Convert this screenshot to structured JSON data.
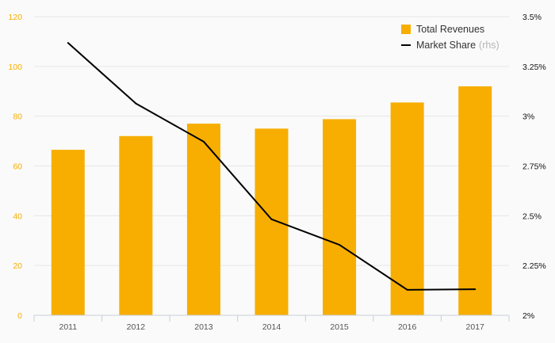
{
  "chart_data": {
    "type": "bar",
    "categories": [
      "2011",
      "2012",
      "2013",
      "2014",
      "2015",
      "2016",
      "2017"
    ],
    "series": [
      {
        "name": "Total Revenues",
        "type": "bar",
        "axis": "left",
        "color": "#f7ae00",
        "values": [
          66.5,
          72,
          77,
          75,
          78.8,
          85.5,
          92
        ]
      },
      {
        "name": "Market Share",
        "type": "line",
        "axis": "right",
        "color": "#000000",
        "values": [
          3.368,
          3.064,
          2.872,
          2.482,
          2.354,
          2.128,
          2.131
        ]
      }
    ],
    "y_left": {
      "lim": [
        0,
        120
      ],
      "ticks": [
        0,
        20,
        40,
        60,
        80,
        100,
        120
      ],
      "tick_labels": [
        "0",
        "20",
        "40",
        "60",
        "80",
        "100",
        "120"
      ],
      "color": "#f7ae00"
    },
    "y_right": {
      "lim": [
        2,
        3.5
      ],
      "ticks": [
        2,
        2.25,
        2.5,
        2.75,
        3,
        3.25,
        3.5
      ],
      "tick_labels": [
        "2%",
        "2.25%",
        "2.5%",
        "2.75%",
        "3%",
        "3.25%",
        "3.5%"
      ]
    },
    "legend": {
      "placement": "top-right",
      "items": [
        {
          "label": "Total Revenues",
          "note": ""
        },
        {
          "label": "Market Share",
          "note": "(rhs)"
        }
      ]
    },
    "grid": true
  }
}
